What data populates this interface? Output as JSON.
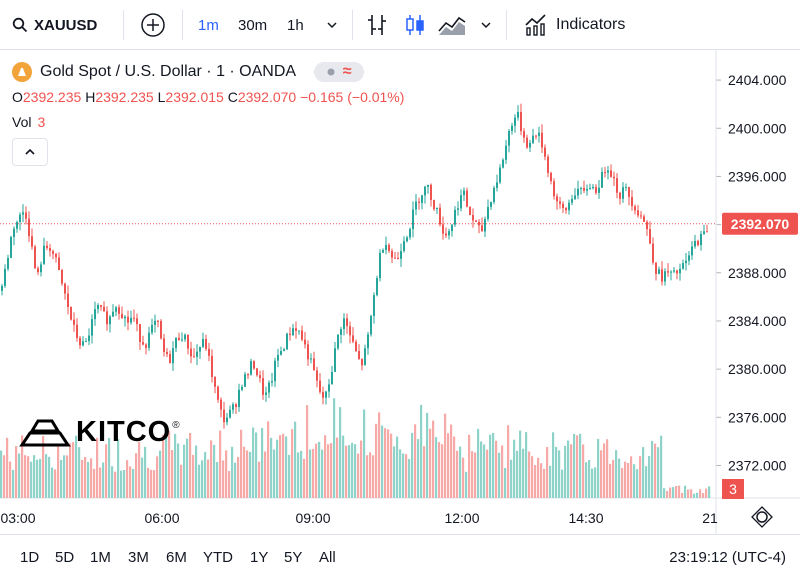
{
  "toolbar": {
    "symbol": "XAUUSD",
    "timeframes": [
      "1m",
      "30m",
      "1h"
    ],
    "indicators_label": "Indicators"
  },
  "legend": {
    "title": "Gold Spot / U.S. Dollar · 1 · OANDA",
    "ohlc": {
      "o_label": "O",
      "o_value": "2392.235",
      "h_label": "H",
      "h_value": "2392.235",
      "l_label": "L",
      "l_value": "2392.015",
      "c_label": "C",
      "c_value": "2392.070",
      "change": "−0.165 (−0.01%)"
    },
    "vol_label": "Vol",
    "vol_value": "3"
  },
  "watermark": "KITCO",
  "bottom": {
    "ranges": [
      "1D",
      "5D",
      "1M",
      "3M",
      "6M",
      "YTD",
      "1Y",
      "5Y",
      "All"
    ],
    "clock": "23:19:12 (UTC-4)"
  },
  "colors": {
    "up": "#26a69a",
    "down": "#ef5350",
    "accent": "#2962ff",
    "vol_up": "#8ed3c9",
    "vol_down": "#f6a9a6"
  },
  "chart_data": {
    "type": "candlestick",
    "x_ticks": [
      "03:00",
      "06:00",
      "09:00",
      "12:00",
      "14:30",
      "21"
    ],
    "y_ticks": [
      "2404.000",
      "2400.000",
      "2396.000",
      "2392.000",
      "2388.000",
      "2384.000",
      "2380.000",
      "2376.000",
      "2372.000"
    ],
    "ylim": [
      2369.3,
      2406.0
    ],
    "last_price_label": "2392.070",
    "last_price": 2392.07,
    "volume_label": "3",
    "series": [
      {
        "t": 0,
        "v": 2386.5
      },
      {
        "t": 6,
        "v": 2389.0
      },
      {
        "t": 12,
        "v": 2391.8
      },
      {
        "t": 18,
        "v": 2392.5
      },
      {
        "t": 24,
        "v": 2393.3
      },
      {
        "t": 30,
        "v": 2390.5
      },
      {
        "t": 36,
        "v": 2387.3
      },
      {
        "t": 42,
        "v": 2389.8
      },
      {
        "t": 48,
        "v": 2390.3
      },
      {
        "t": 54,
        "v": 2389.2
      },
      {
        "t": 60,
        "v": 2387.3
      },
      {
        "t": 66,
        "v": 2385.5
      },
      {
        "t": 72,
        "v": 2383.5
      },
      {
        "t": 78,
        "v": 2382.3
      },
      {
        "t": 84,
        "v": 2381.8
      },
      {
        "t": 90,
        "v": 2383.6
      },
      {
        "t": 96,
        "v": 2385.2
      },
      {
        "t": 102,
        "v": 2384.5
      },
      {
        "t": 108,
        "v": 2384.0
      },
      {
        "t": 114,
        "v": 2385.5
      },
      {
        "t": 120,
        "v": 2384.8
      },
      {
        "t": 126,
        "v": 2383.9
      },
      {
        "t": 132,
        "v": 2384.4
      },
      {
        "t": 138,
        "v": 2382.8
      },
      {
        "t": 144,
        "v": 2382.0
      },
      {
        "t": 150,
        "v": 2383.2
      },
      {
        "t": 156,
        "v": 2384.0
      },
      {
        "t": 162,
        "v": 2381.5
      },
      {
        "t": 168,
        "v": 2380.6
      },
      {
        "t": 174,
        "v": 2382.2
      },
      {
        "t": 180,
        "v": 2383.0
      },
      {
        "t": 186,
        "v": 2382.2
      },
      {
        "t": 192,
        "v": 2380.8
      },
      {
        "t": 198,
        "v": 2381.8
      },
      {
        "t": 204,
        "v": 2382.3
      },
      {
        "t": 210,
        "v": 2380.0
      },
      {
        "t": 216,
        "v": 2377.5
      },
      {
        "t": 222,
        "v": 2375.8
      },
      {
        "t": 228,
        "v": 2376.2
      },
      {
        "t": 234,
        "v": 2377.0
      },
      {
        "t": 240,
        "v": 2378.8
      },
      {
        "t": 246,
        "v": 2379.5
      },
      {
        "t": 252,
        "v": 2380.6
      },
      {
        "t": 258,
        "v": 2379.2
      },
      {
        "t": 264,
        "v": 2377.6
      },
      {
        "t": 270,
        "v": 2378.9
      },
      {
        "t": 276,
        "v": 2381.0
      },
      {
        "t": 282,
        "v": 2381.8
      },
      {
        "t": 288,
        "v": 2383.0
      },
      {
        "t": 294,
        "v": 2383.6
      },
      {
        "t": 300,
        "v": 2382.8
      },
      {
        "t": 306,
        "v": 2381.4
      },
      {
        "t": 312,
        "v": 2380.0
      },
      {
        "t": 318,
        "v": 2378.2
      },
      {
        "t": 324,
        "v": 2377.4
      },
      {
        "t": 330,
        "v": 2379.6
      },
      {
        "t": 336,
        "v": 2382.4
      },
      {
        "t": 342,
        "v": 2384.3
      },
      {
        "t": 348,
        "v": 2383.0
      },
      {
        "t": 354,
        "v": 2381.6
      },
      {
        "t": 360,
        "v": 2380.2
      },
      {
        "t": 366,
        "v": 2382.0
      },
      {
        "t": 372,
        "v": 2385.5
      },
      {
        "t": 378,
        "v": 2389.0
      },
      {
        "t": 384,
        "v": 2391.0
      },
      {
        "t": 390,
        "v": 2389.4
      },
      {
        "t": 396,
        "v": 2389.0
      },
      {
        "t": 402,
        "v": 2390.8
      },
      {
        "t": 408,
        "v": 2391.6
      },
      {
        "t": 414,
        "v": 2393.5
      },
      {
        "t": 420,
        "v": 2394.6
      },
      {
        "t": 426,
        "v": 2395.2
      },
      {
        "t": 432,
        "v": 2393.9
      },
      {
        "t": 438,
        "v": 2392.6
      },
      {
        "t": 444,
        "v": 2391.0
      },
      {
        "t": 450,
        "v": 2391.9
      },
      {
        "t": 456,
        "v": 2393.6
      },
      {
        "t": 462,
        "v": 2394.7
      },
      {
        "t": 468,
        "v": 2393.0
      },
      {
        "t": 474,
        "v": 2392.1
      },
      {
        "t": 480,
        "v": 2391.2
      },
      {
        "t": 486,
        "v": 2393.2
      },
      {
        "t": 492,
        "v": 2394.8
      },
      {
        "t": 498,
        "v": 2396.2
      },
      {
        "t": 504,
        "v": 2398.2
      },
      {
        "t": 510,
        "v": 2400.4
      },
      {
        "t": 516,
        "v": 2401.2
      },
      {
        "t": 522,
        "v": 2399.5
      },
      {
        "t": 528,
        "v": 2398.4
      },
      {
        "t": 534,
        "v": 2399.8
      },
      {
        "t": 540,
        "v": 2399.0
      },
      {
        "t": 546,
        "v": 2397.0
      },
      {
        "t": 552,
        "v": 2394.8
      },
      {
        "t": 558,
        "v": 2393.4
      },
      {
        "t": 564,
        "v": 2393.0
      },
      {
        "t": 570,
        "v": 2394.2
      },
      {
        "t": 576,
        "v": 2395.0
      },
      {
        "t": 582,
        "v": 2394.4
      },
      {
        "t": 588,
        "v": 2395.4
      },
      {
        "t": 594,
        "v": 2394.8
      },
      {
        "t": 600,
        "v": 2395.7
      },
      {
        "t": 606,
        "v": 2397.1
      },
      {
        "t": 612,
        "v": 2396.0
      },
      {
        "t": 618,
        "v": 2394.4
      },
      {
        "t": 624,
        "v": 2395.0
      },
      {
        "t": 630,
        "v": 2394.1
      },
      {
        "t": 636,
        "v": 2393.2
      },
      {
        "t": 642,
        "v": 2392.5
      },
      {
        "t": 648,
        "v": 2391.0
      },
      {
        "t": 654,
        "v": 2388.4
      },
      {
        "t": 660,
        "v": 2387.6
      },
      {
        "t": 666,
        "v": 2388.0
      },
      {
        "t": 672,
        "v": 2387.7
      },
      {
        "t": 678,
        "v": 2388.2
      },
      {
        "t": 684,
        "v": 2388.6
      },
      {
        "t": 690,
        "v": 2389.8
      },
      {
        "t": 696,
        "v": 2390.7
      },
      {
        "t": 702,
        "v": 2391.0
      },
      {
        "t": 708,
        "v": 2392.07
      }
    ]
  }
}
